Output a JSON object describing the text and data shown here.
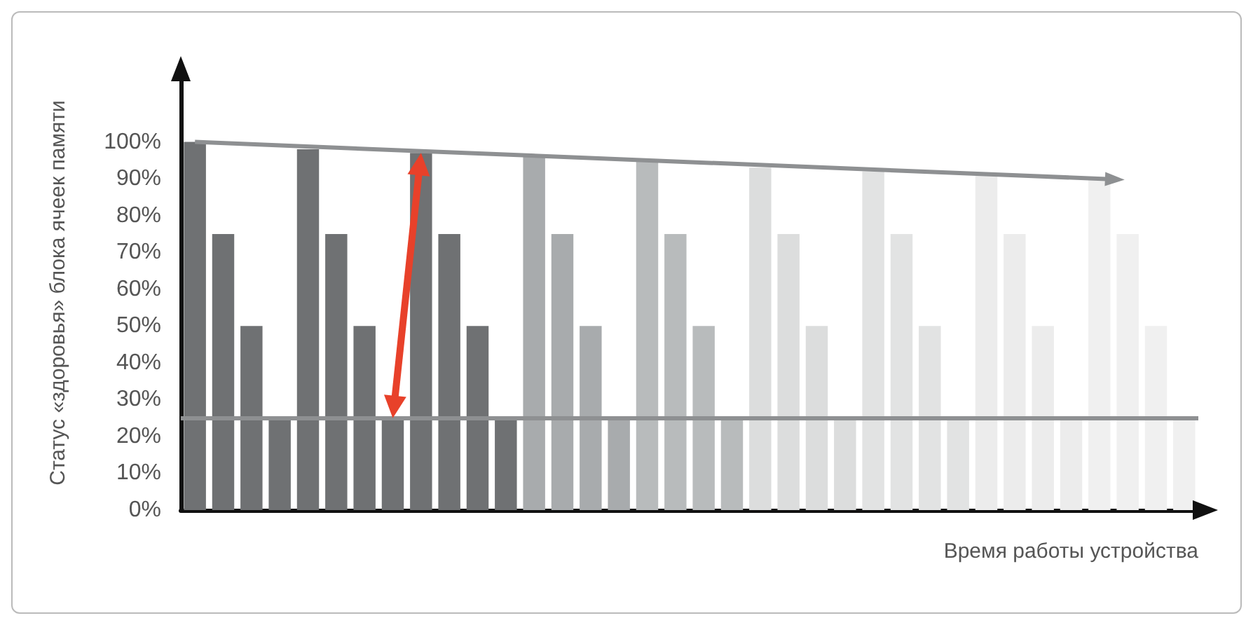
{
  "chart_data": {
    "type": "bar",
    "xlabel": "Время работы устройства",
    "ylabel": "Статус «здоровья» блока ячеек памяти",
    "categories": [
      null,
      null,
      null,
      null,
      null,
      null,
      null,
      null,
      null,
      null,
      null,
      null,
      null,
      null,
      null,
      null,
      null,
      null,
      null,
      null,
      null,
      null,
      null,
      null,
      null,
      null,
      null,
      null,
      null,
      null,
      null,
      null,
      null,
      null,
      null,
      null
    ],
    "values": [
      100,
      75,
      50,
      25,
      98,
      75,
      50,
      25,
      97,
      75,
      50,
      25,
      96,
      75,
      50,
      25,
      95,
      75,
      50,
      25,
      93,
      75,
      50,
      25,
      92,
      75,
      50,
      25,
      91,
      75,
      50,
      25,
      90,
      75,
      50,
      25
    ],
    "colors": [
      "#6f7173",
      "#6f7173",
      "#6f7173",
      "#6f7173",
      "#6f7173",
      "#6f7173",
      "#6f7173",
      "#6f7173",
      "#6f7173",
      "#6f7173",
      "#6f7173",
      "#6f7173",
      "#a8abad",
      "#a8abad",
      "#a8abad",
      "#a8abad",
      "#b8bbbc",
      "#b8bbbc",
      "#b8bbbc",
      "#b8bbbc",
      "#dcdddd",
      "#dcdddd",
      "#dcdddd",
      "#dcdddd",
      "#e2e3e3",
      "#e2e3e3",
      "#e2e3e3",
      "#e2e3e3",
      "#ececec",
      "#ececec",
      "#ececec",
      "#ececec",
      "#f0f0f0",
      "#f0f0f0",
      "#f0f0f0",
      "#f0f0f0"
    ],
    "ylim": [
      0,
      118
    ],
    "yticks": [
      {
        "value": 0,
        "label": "0%"
      },
      {
        "value": 10,
        "label": "10%"
      },
      {
        "value": 20,
        "label": "20%"
      },
      {
        "value": 30,
        "label": "30%"
      },
      {
        "value": 40,
        "label": "40%"
      },
      {
        "value": 50,
        "label": "50%"
      },
      {
        "value": 60,
        "label": "60%"
      },
      {
        "value": 70,
        "label": "70%"
      },
      {
        "value": 80,
        "label": "80%"
      },
      {
        "value": 90,
        "label": "90%"
      },
      {
        "value": 100,
        "label": "100%"
      }
    ],
    "ref_lines": [
      {
        "axis": "y",
        "value": 25,
        "label": null,
        "color": "#8e9092"
      }
    ],
    "grid": false
  }
}
